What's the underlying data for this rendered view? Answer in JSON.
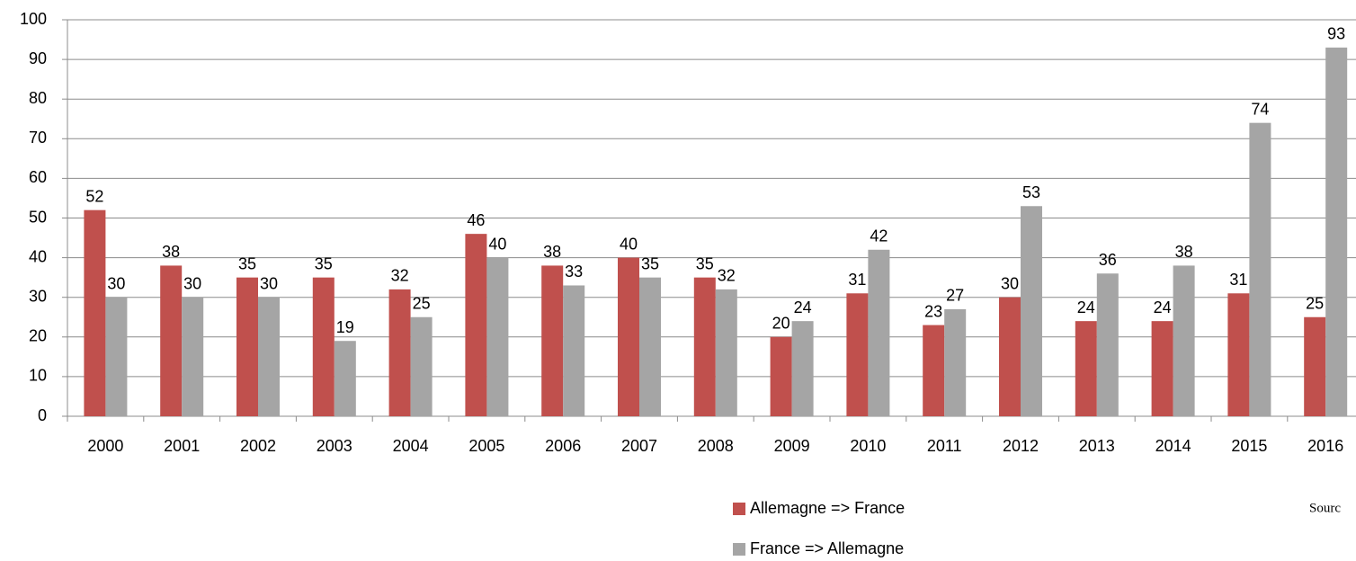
{
  "chart_data": {
    "type": "bar",
    "categories": [
      "2000",
      "2001",
      "2002",
      "2003",
      "2004",
      "2005",
      "2006",
      "2007",
      "2008",
      "2009",
      "2010",
      "2011",
      "2012",
      "2013",
      "2014",
      "2015",
      "2016"
    ],
    "series": [
      {
        "name": "Allemagne => France",
        "color": "#c0504d",
        "values": [
          52,
          38,
          35,
          35,
          32,
          46,
          38,
          40,
          35,
          20,
          31,
          23,
          30,
          24,
          24,
          31,
          25
        ]
      },
      {
        "name": "France => Allemagne",
        "color": "#a5a5a5",
        "values": [
          30,
          30,
          30,
          19,
          25,
          40,
          33,
          35,
          32,
          24,
          42,
          27,
          53,
          36,
          38,
          74,
          93
        ]
      }
    ],
    "ylim": [
      0,
      100
    ],
    "yticks": [
      0,
      10,
      20,
      30,
      40,
      50,
      60,
      70,
      80,
      90,
      100
    ],
    "grid": true,
    "source": "Sourc"
  }
}
